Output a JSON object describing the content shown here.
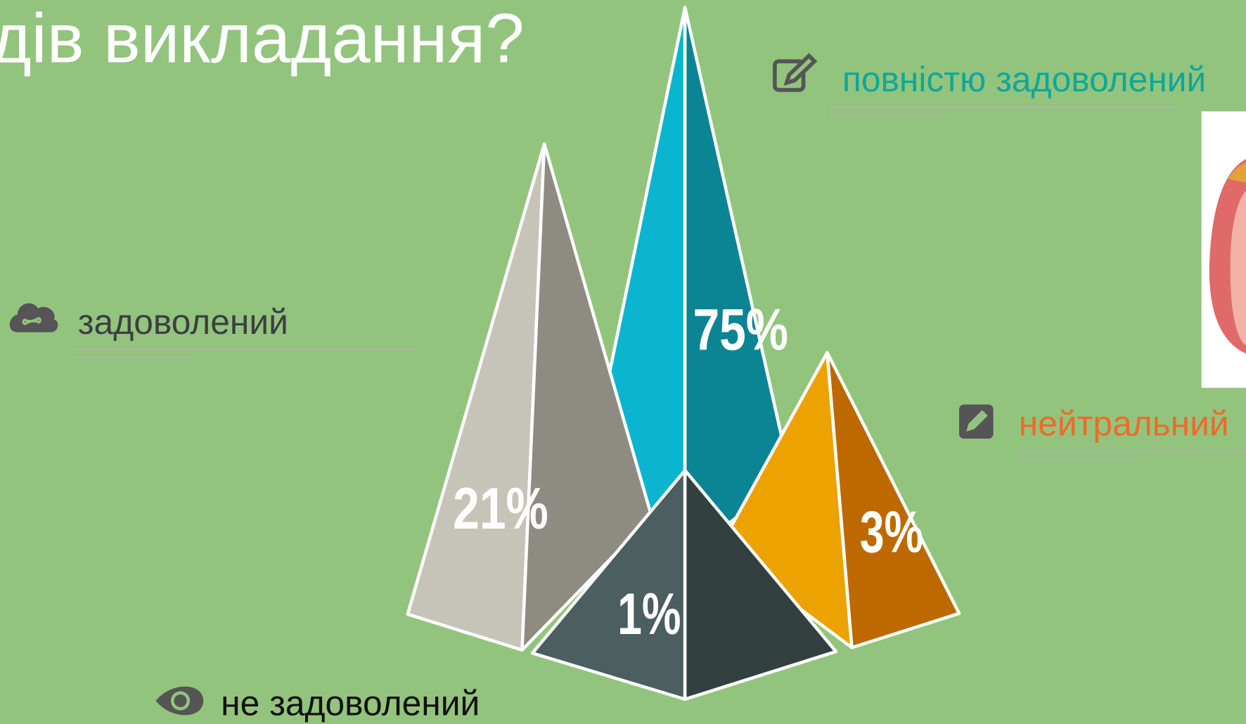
{
  "chart_data": {
    "type": "pyramid",
    "title": "дів викладання?",
    "categories": [
      "повністю задоволений",
      "задоволений",
      "нейтральний",
      "не задоволений"
    ],
    "values": [
      75,
      21,
      3,
      1
    ],
    "value_labels": [
      "75%",
      "21%",
      "3%",
      "1%"
    ],
    "colors": [
      [
        "#0bb5cf",
        "#0b8494"
      ],
      [
        "#c6c3b8",
        "#8e8b82"
      ],
      [
        "#eca200",
        "#bd6900"
      ],
      [
        "#4b5e60",
        "#324040"
      ]
    ],
    "label_colors": [
      "#0ea89a",
      "#3b3f42",
      "#ef6a2a",
      "#111111"
    ]
  }
}
